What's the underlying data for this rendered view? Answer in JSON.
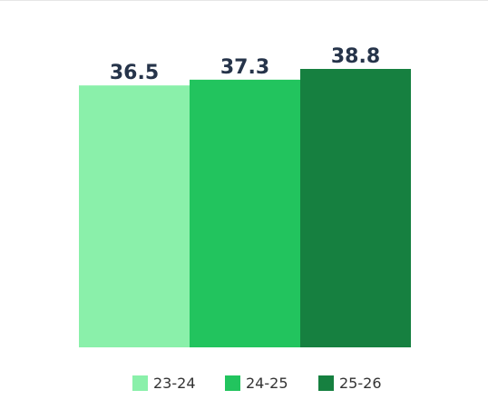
{
  "chart_data": {
    "type": "bar",
    "categories": [
      "23-24",
      "24-25",
      "25-26"
    ],
    "values": [
      36.5,
      37.3,
      38.8
    ],
    "colors": [
      "#8af0aa",
      "#22c45e",
      "#168040"
    ],
    "legend": {
      "position": "bottom",
      "entries": [
        "23-24",
        "24-25",
        "25-26"
      ]
    },
    "grid": false,
    "ylim": [
      0,
      38.8
    ],
    "data_labels": [
      "36.5",
      "37.3",
      "38.8"
    ]
  }
}
